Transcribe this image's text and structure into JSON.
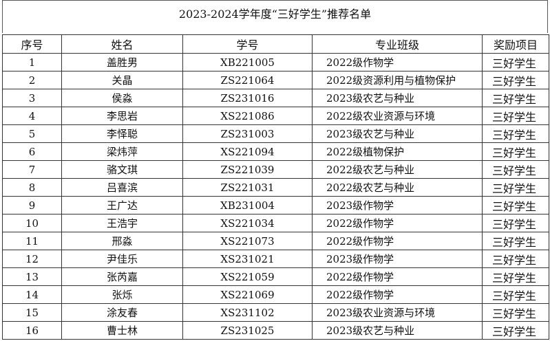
{
  "title": "2023-2024学年度“三好学生”推荐名单",
  "headers": [
    "序号",
    "姓名",
    "学号",
    "专业班级",
    "奖励项目"
  ],
  "rows": [
    [
      "1",
      "盖胜男",
      "XB221005",
      "2022级作物学",
      "三好学生"
    ],
    [
      "2",
      "关晶",
      "ZS221064",
      "2022级资源利用与植物保护",
      "三好学生"
    ],
    [
      "3",
      "侯淼",
      "ZS231016",
      "2023级农艺与种业",
      "三好学生"
    ],
    [
      "4",
      "李思岩",
      "XS221086",
      "2022级农业资源与环境",
      "三好学生"
    ],
    [
      "5",
      "李怿聪",
      "ZS231003",
      "2023级农艺与种业",
      "三好学生"
    ],
    [
      "6",
      "梁炜萍",
      "XS221094",
      "2022级植物保护",
      "三好学生"
    ],
    [
      "7",
      "骆文琪",
      "ZS221039",
      "2022级农艺与种业",
      "三好学生"
    ],
    [
      "8",
      "吕喜滨",
      "ZS221031",
      "2022级农艺与种业",
      "三好学生"
    ],
    [
      "9",
      "王广达",
      "XB231004",
      "2023级作物学",
      "三好学生"
    ],
    [
      "10",
      "王浩宇",
      "XS221034",
      "2022级作物学",
      "三好学生"
    ],
    [
      "11",
      "邢淼",
      "XS221073",
      "2022级作物学",
      "三好学生"
    ],
    [
      "12",
      "尹佳乐",
      "XS231021",
      "2023级作物学",
      "三好学生"
    ],
    [
      "13",
      "张芮嘉",
      "XS221059",
      "2022级作物学",
      "三好学生"
    ],
    [
      "14",
      "张烁",
      "XS221069",
      "2022级作物学",
      "三好学生"
    ],
    [
      "15",
      "涂友春",
      "XS231102",
      "2023级农业资源与环境",
      "三好学生"
    ],
    [
      "16",
      "曹士林",
      "ZS231025",
      "2023级农艺与种业",
      "三好学生"
    ]
  ]
}
